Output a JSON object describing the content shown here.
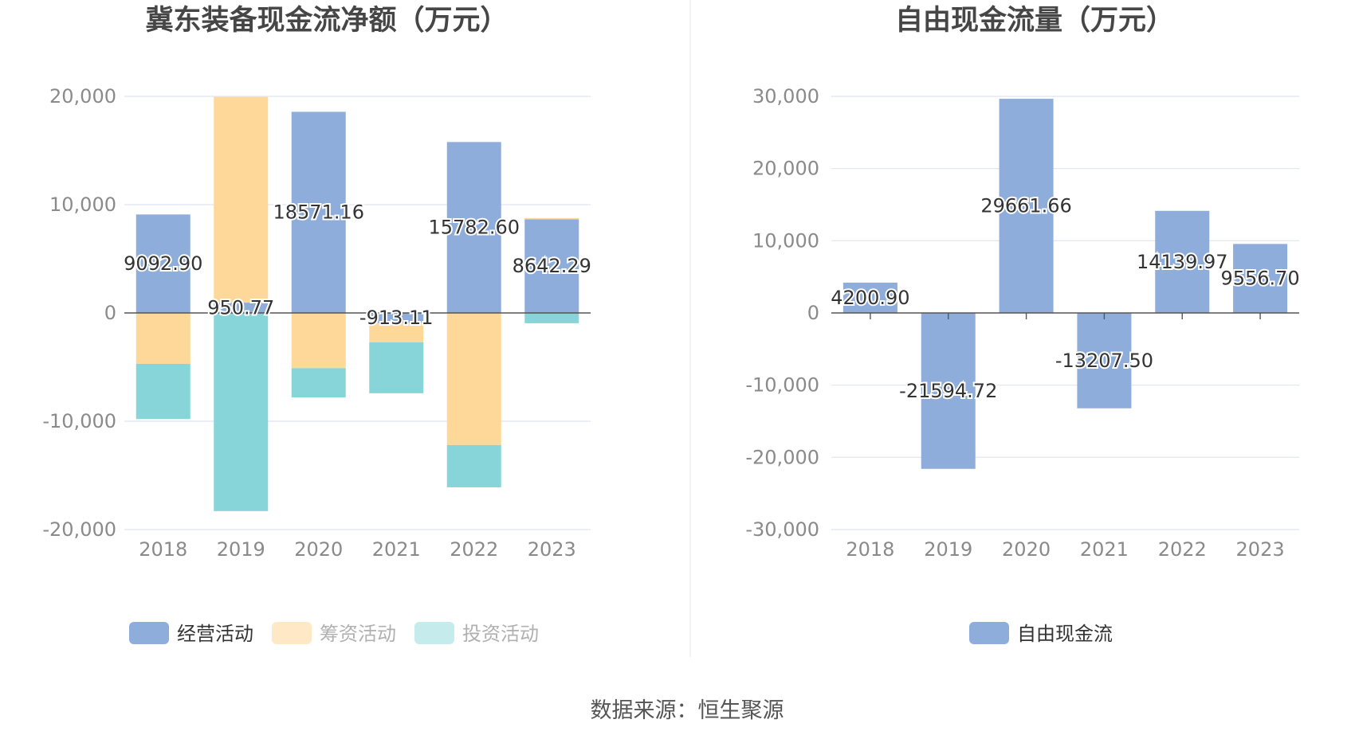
{
  "source_label": "数据来源：恒生聚源",
  "colors": {
    "operating": "#8eaddb",
    "financing": "#fed899",
    "investing": "#87d5d8",
    "fcf": "#8eaddb"
  },
  "chart_data": [
    {
      "type": "bar",
      "stacked": true,
      "title": "冀东装备现金流净额（万元）",
      "categories": [
        "2018",
        "2019",
        "2020",
        "2021",
        "2022",
        "2023"
      ],
      "ylim": [
        -20000,
        20000
      ],
      "yticks": [
        20000,
        10000,
        0,
        -10000,
        -20000
      ],
      "ytick_labels": [
        "20,000",
        "10,000",
        "0",
        "-10,000",
        "-20,000"
      ],
      "grid": true,
      "legend_position": "bottom",
      "series": [
        {
          "name": "经营活动",
          "color": "#8eaddb",
          "values": [
            9092.9,
            950.77,
            18571.16,
            -913.11,
            15782.6,
            8642.29
          ],
          "labels": [
            "9092.90",
            "950.77",
            "18571.16",
            "-913.11",
            "15782.60",
            "8642.29"
          ]
        },
        {
          "name": "筹资活动",
          "color": "#fed899",
          "values": [
            -4700,
            19000,
            -5100,
            -1800,
            -12200,
            120
          ]
        },
        {
          "name": "投资活动",
          "color": "#87d5d8",
          "values": [
            -5100,
            -18300,
            -2700,
            -4700,
            -3900,
            -950
          ]
        }
      ]
    },
    {
      "type": "bar",
      "title": "自由现金流量（万元）",
      "categories": [
        "2018",
        "2019",
        "2020",
        "2021",
        "2022",
        "2023"
      ],
      "ylim": [
        -30000,
        30000
      ],
      "yticks": [
        30000,
        20000,
        10000,
        0,
        -10000,
        -20000,
        -30000
      ],
      "ytick_labels": [
        "30,000",
        "20,000",
        "10,000",
        "0",
        "-10,000",
        "-20,000",
        "-30,000"
      ],
      "grid": true,
      "legend_position": "bottom",
      "series": [
        {
          "name": "自由现金流",
          "color": "#8eaddb",
          "values": [
            4200.9,
            -21594.72,
            29661.66,
            -13207.5,
            14139.97,
            9556.7
          ],
          "labels": [
            "4200.90",
            "-21594.72",
            "29661.66",
            "-13207.50",
            "14139.97",
            "9556.70"
          ]
        }
      ]
    }
  ]
}
